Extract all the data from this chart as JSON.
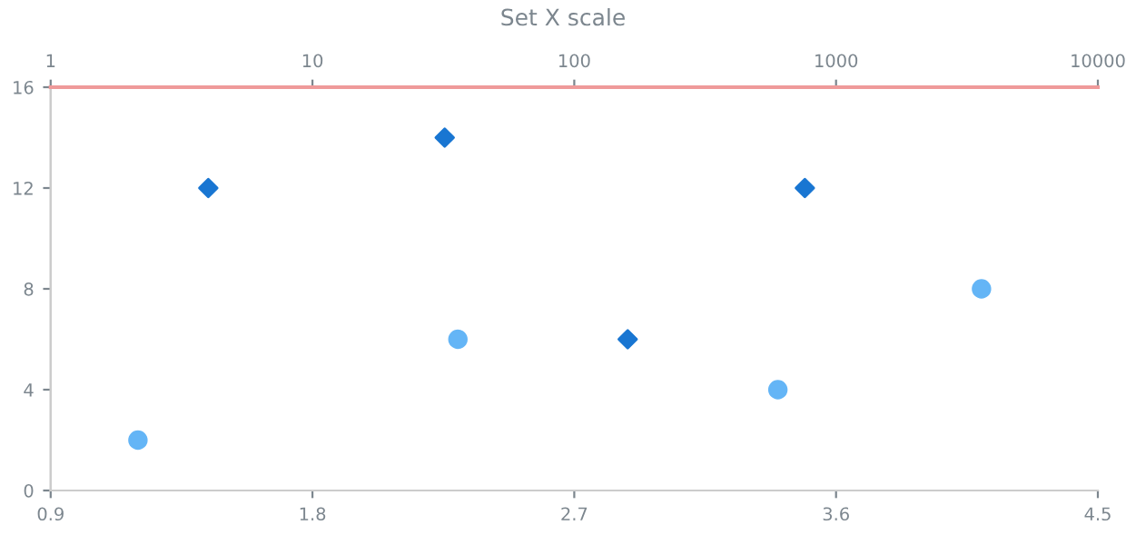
{
  "chart_data": {
    "type": "scatter",
    "title": "Set X scale",
    "xlim": [
      0.9,
      4.5
    ],
    "xticks": [
      0.9,
      1.8,
      2.7,
      3.6,
      4.5
    ],
    "x2lim": [
      1,
      10000
    ],
    "x2ticks": [
      1,
      10,
      100,
      1000,
      10000
    ],
    "log": "x2",
    "ylim": [
      0,
      16
    ],
    "yticks": [
      0,
      4,
      8,
      12,
      16
    ],
    "grid": false,
    "series": [
      {
        "color": "#64b5f6",
        "marker": "circle",
        "x": [
          1.2,
          2.3,
          3.4,
          4.1
        ],
        "values": [
          2,
          6,
          4,
          8
        ]
      },
      {
        "color": "#1976d2",
        "marker": "diamond",
        "axis": "x2",
        "x": [
          4,
          32,
          160,
          760
        ],
        "values": [
          12,
          14,
          6,
          12
        ]
      }
    ]
  }
}
